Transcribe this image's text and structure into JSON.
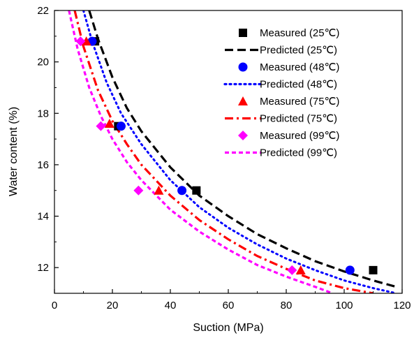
{
  "chart_data": {
    "type": "scatter",
    "title": "",
    "xlabel": "Suction (MPa)",
    "ylabel": "Water content (%)",
    "xlim": [
      0,
      120
    ],
    "ylim": [
      11,
      22
    ],
    "xticks": [
      0,
      20,
      40,
      60,
      80,
      100,
      120
    ],
    "yticks": [
      12,
      14,
      16,
      18,
      20,
      22
    ],
    "grid": false,
    "legend_position": "top-right",
    "series": [
      {
        "name": "Measured (25℃)",
        "kind": "measured",
        "marker": "square",
        "color": "#000000",
        "points": [
          {
            "x": 14,
            "y": 20.8
          },
          {
            "x": 22,
            "y": 17.5
          },
          {
            "x": 49,
            "y": 15.0
          },
          {
            "x": 110,
            "y": 11.9
          }
        ]
      },
      {
        "name": "Predicted (25℃)",
        "kind": "predicted",
        "dash": "dash",
        "color": "#000000",
        "points": [
          {
            "x": 12,
            "y": 22.0
          },
          {
            "x": 15,
            "y": 20.9
          },
          {
            "x": 20,
            "y": 19.4
          },
          {
            "x": 25,
            "y": 18.2
          },
          {
            "x": 30,
            "y": 17.3
          },
          {
            "x": 40,
            "y": 15.9
          },
          {
            "x": 50,
            "y": 14.8
          },
          {
            "x": 60,
            "y": 14.0
          },
          {
            "x": 70,
            "y": 13.3
          },
          {
            "x": 80,
            "y": 12.75
          },
          {
            "x": 90,
            "y": 12.25
          },
          {
            "x": 100,
            "y": 11.85
          },
          {
            "x": 110,
            "y": 11.5
          },
          {
            "x": 118,
            "y": 11.25
          }
        ]
      },
      {
        "name": "Measured (48℃)",
        "kind": "measured",
        "marker": "circle",
        "color": "#0000ff",
        "points": [
          {
            "x": 13,
            "y": 20.8
          },
          {
            "x": 23,
            "y": 17.5
          },
          {
            "x": 44,
            "y": 15.0
          },
          {
            "x": 102,
            "y": 11.9
          }
        ]
      },
      {
        "name": "Predicted (48℃)",
        "kind": "predicted",
        "dash": "dot",
        "color": "#0000ff",
        "points": [
          {
            "x": 10,
            "y": 22.0
          },
          {
            "x": 13,
            "y": 20.8
          },
          {
            "x": 18,
            "y": 19.2
          },
          {
            "x": 23,
            "y": 18.0
          },
          {
            "x": 30,
            "y": 16.8
          },
          {
            "x": 40,
            "y": 15.4
          },
          {
            "x": 50,
            "y": 14.35
          },
          {
            "x": 60,
            "y": 13.55
          },
          {
            "x": 70,
            "y": 12.9
          },
          {
            "x": 80,
            "y": 12.35
          },
          {
            "x": 90,
            "y": 11.9
          },
          {
            "x": 100,
            "y": 11.5
          },
          {
            "x": 110,
            "y": 11.2
          },
          {
            "x": 118,
            "y": 11.0
          }
        ]
      },
      {
        "name": "Measured (75℃)",
        "kind": "measured",
        "marker": "triangle",
        "color": "#ff0000",
        "points": [
          {
            "x": 11,
            "y": 20.8
          },
          {
            "x": 19,
            "y": 17.6
          },
          {
            "x": 36,
            "y": 15.0
          },
          {
            "x": 85,
            "y": 11.9
          }
        ]
      },
      {
        "name": "Predicted (75℃)",
        "kind": "predicted",
        "dash": "dashdot",
        "color": "#ff0000",
        "points": [
          {
            "x": 7,
            "y": 22.0
          },
          {
            "x": 10,
            "y": 20.6
          },
          {
            "x": 15,
            "y": 18.9
          },
          {
            "x": 20,
            "y": 17.7
          },
          {
            "x": 25,
            "y": 16.8
          },
          {
            "x": 30,
            "y": 16.0
          },
          {
            "x": 40,
            "y": 14.8
          },
          {
            "x": 50,
            "y": 13.85
          },
          {
            "x": 60,
            "y": 13.1
          },
          {
            "x": 70,
            "y": 12.45
          },
          {
            "x": 80,
            "y": 11.95
          },
          {
            "x": 90,
            "y": 11.5
          },
          {
            "x": 100,
            "y": 11.2
          },
          {
            "x": 110,
            "y": 11.0
          }
        ]
      },
      {
        "name": "Measured (99℃)",
        "kind": "measured",
        "marker": "diamond",
        "color": "#ff00ff",
        "points": [
          {
            "x": 9,
            "y": 20.8
          },
          {
            "x": 16,
            "y": 17.5
          },
          {
            "x": 29,
            "y": 15.0
          },
          {
            "x": 82,
            "y": 11.9
          }
        ]
      },
      {
        "name": "Predicted (99℃)",
        "kind": "predicted",
        "dash": "shortdash",
        "color": "#ff00ff",
        "points": [
          {
            "x": 5,
            "y": 22.0
          },
          {
            "x": 8,
            "y": 20.5
          },
          {
            "x": 12,
            "y": 19.0
          },
          {
            "x": 16,
            "y": 17.9
          },
          {
            "x": 20,
            "y": 17.0
          },
          {
            "x": 25,
            "y": 16.1
          },
          {
            "x": 30,
            "y": 15.4
          },
          {
            "x": 40,
            "y": 14.25
          },
          {
            "x": 50,
            "y": 13.4
          },
          {
            "x": 60,
            "y": 12.7
          },
          {
            "x": 70,
            "y": 12.1
          },
          {
            "x": 80,
            "y": 11.65
          },
          {
            "x": 90,
            "y": 11.25
          },
          {
            "x": 96,
            "y": 11.0
          }
        ]
      }
    ]
  }
}
